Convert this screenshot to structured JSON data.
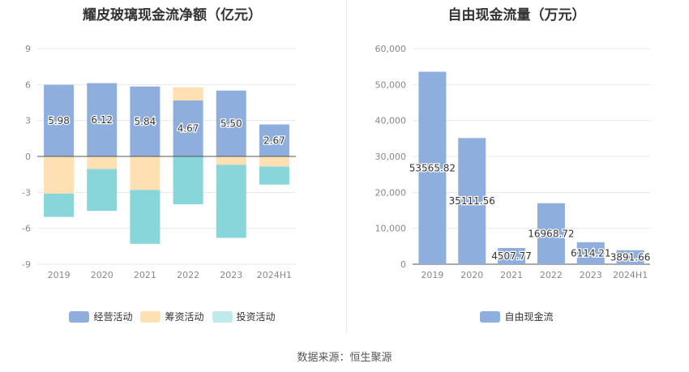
{
  "source": "数据来源：恒生聚源",
  "colors": {
    "operating": "#8eaedd",
    "financing": "#ffe0b2",
    "investing": "#88d6d9",
    "free_cash_flow": "#8eaedd"
  },
  "chart_data": [
    {
      "type": "bar",
      "stacked": true,
      "title": "耀皮玻璃现金流净额（亿元）",
      "xlabel": "",
      "ylabel": "",
      "categories": [
        "2019",
        "2020",
        "2021",
        "2022",
        "2023",
        "2024H1"
      ],
      "ylim": [
        -9,
        9
      ],
      "yticks": [
        -9,
        -6,
        -3,
        0,
        3,
        6,
        9
      ],
      "grid": true,
      "legend": "bottom",
      "series": [
        {
          "name": "经营活动",
          "color_key": "operating",
          "values": [
            5.98,
            6.12,
            5.84,
            4.67,
            5.5,
            2.67
          ],
          "labels": [
            "5.98",
            "6.12",
            "5.84",
            "4.67",
            "5.50",
            "2.67"
          ]
        },
        {
          "name": "筹资活动",
          "color_key": "financing",
          "values": [
            -3.1,
            -1.05,
            -2.8,
            1.1,
            -0.7,
            -0.85
          ]
        },
        {
          "name": "投资活动",
          "color_key": "investing",
          "values": [
            -1.95,
            -3.5,
            -4.5,
            -4.0,
            -6.1,
            -1.5
          ]
        }
      ]
    },
    {
      "type": "bar",
      "title": "自由现金流量（万元）",
      "xlabel": "",
      "ylabel": "",
      "categories": [
        "2019",
        "2020",
        "2021",
        "2022",
        "2023",
        "2024H1"
      ],
      "ylim": [
        0,
        60000
      ],
      "yticks": [
        0,
        10000,
        20000,
        30000,
        40000,
        50000,
        60000
      ],
      "ytick_labels": [
        "0",
        "10,000",
        "20,000",
        "30,000",
        "40,000",
        "50,000",
        "60,000"
      ],
      "grid": true,
      "legend": "bottom",
      "series": [
        {
          "name": "自由现金流",
          "color_key": "free_cash_flow",
          "values": [
            53565.82,
            35111.56,
            4507.77,
            16968.72,
            6114.21,
            3891.66
          ],
          "labels": [
            "53565.82",
            "35111.56",
            "4507.77",
            "16968.72",
            "6114.21",
            "3891.66"
          ]
        }
      ]
    }
  ]
}
